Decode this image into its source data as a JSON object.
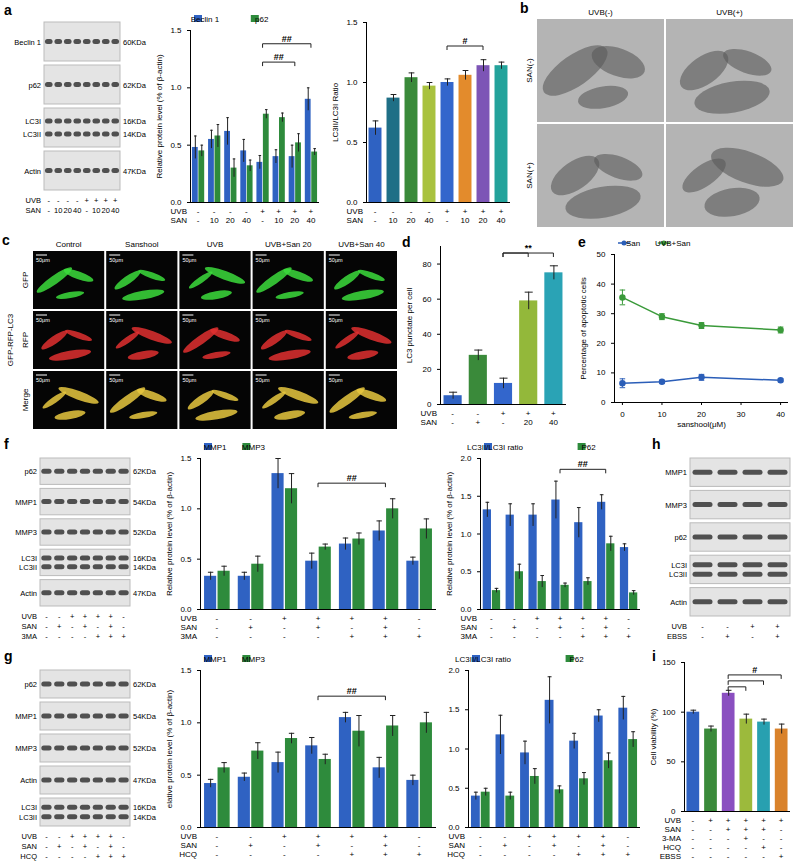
{
  "chart_data": [
    {
      "panel": "a",
      "type": "bar",
      "y_label": "Relative protein level (% of β-actin)",
      "ylim": [
        0,
        1.5
      ],
      "yticks": [
        {
          "value": 0,
          "label": "0.0"
        },
        0.5,
        {
          "value": 1,
          "label": "1.0"
        },
        1.5
      ],
      "x_rows": [
        {
          "label": "UVB",
          "values": [
            "-",
            "-",
            "-",
            "-",
            "+",
            "+",
            "+",
            "+"
          ]
        },
        {
          "label": "SAN",
          "values": [
            "-",
            "10",
            "20",
            "40",
            "-",
            "10",
            "20",
            "40"
          ]
        }
      ],
      "legend": "top",
      "series": [
        {
          "name": "Beclin 1",
          "color": "#2f62c2",
          "values": [
            0.48,
            0.55,
            0.62,
            0.45,
            0.35,
            0.4,
            0.4,
            0.9
          ],
          "error": [
            0.1,
            0.08,
            0.12,
            0.1,
            0.06,
            0.06,
            0.1,
            0.1
          ]
        },
        {
          "name": "p62",
          "color": "#2e8b3c",
          "values": [
            0.45,
            0.58,
            0.3,
            0.32,
            0.77,
            0.74,
            0.52,
            0.44
          ],
          "error": [
            0.05,
            0.1,
            0.08,
            0.05,
            0.04,
            0.04,
            0.08,
            0.03
          ]
        }
      ],
      "annotations": [
        {
          "text": "##",
          "from": 4,
          "to": 7,
          "y": 1.38
        },
        {
          "text": "##",
          "from": 4,
          "to": 6,
          "y": 1.22
        }
      ]
    },
    {
      "panel": "a",
      "type": "bar",
      "y_label": "LC3II/LC3I Ratio",
      "ylim": [
        0,
        1.5
      ],
      "yticks": [
        {
          "value": 0,
          "label": "0.0"
        },
        0.5,
        {
          "value": 1,
          "label": "1.0"
        },
        1.5
      ],
      "x_rows": [
        {
          "label": "UVB",
          "values": [
            "-",
            "-",
            "-",
            "-",
            "+",
            "+",
            "+",
            "+"
          ]
        },
        {
          "label": "SAN",
          "values": [
            "-",
            "10",
            "20",
            "40",
            "-",
            "10",
            "20",
            "40"
          ]
        }
      ],
      "values": [
        0.62,
        0.87,
        1.04,
        0.97,
        1.0,
        1.06,
        1.14,
        1.14
      ],
      "error": [
        0.06,
        0.03,
        0.04,
        0.03,
        0.03,
        0.04,
        0.05,
        0.03
      ],
      "colors": [
        "#2f62c2",
        "#1f6f86",
        "#3a8a3a",
        "#a9c23f",
        "#3366cc",
        "#e38b2c",
        "#7d55b6",
        "#23a39b"
      ],
      "annotations": [
        {
          "text": "#",
          "from": 4,
          "to": 6,
          "y": 1.3
        }
      ]
    },
    {
      "panel": "d",
      "type": "bar",
      "y_label": "LC3 punctate per cell",
      "ylim": [
        0,
        90
      ],
      "yticks": [
        0,
        20,
        40,
        60,
        80
      ],
      "x_rows": [
        {
          "label": "UVB",
          "values": [
            "-",
            "-",
            "+",
            "+",
            "+"
          ]
        },
        {
          "label": "SAN",
          "values": [
            "-",
            "+",
            "-",
            "20",
            "40"
          ]
        }
      ],
      "values": [
        5,
        28,
        12,
        59,
        75
      ],
      "error": [
        2,
        3,
        3,
        5,
        4
      ],
      "colors": [
        "#2f62c2",
        "#3a8a3a",
        "#3366cc",
        "#93b83a",
        "#2aa3b5"
      ],
      "annotations": [
        {
          "text": "**",
          "from": 2,
          "to": 4,
          "y": 86
        },
        {
          "from": 2,
          "to": 3,
          "y": 86
        }
      ]
    },
    {
      "panel": "e",
      "type": "line",
      "y_label": "Percentage of apoptotic cells",
      "x_label": "sanshool(μM)",
      "xlim": [
        -2,
        42
      ],
      "xticks": [
        0,
        10,
        20,
        30,
        40
      ],
      "ylim": [
        0,
        50
      ],
      "yticks": [
        0,
        10,
        20,
        30,
        40,
        50
      ],
      "x": [
        0,
        10,
        20,
        40
      ],
      "legend": "top",
      "series": [
        {
          "name": "San",
          "color": "#2b5eb8",
          "marker": "circle",
          "values": [
            6.5,
            7,
            8.5,
            7.5
          ],
          "error": [
            1.5,
            0.5,
            1,
            0.5
          ]
        },
        {
          "name": "UVB+San",
          "color": "#3a9a3a",
          "marker": "circle",
          "values": [
            35.5,
            29,
            26,
            24.5
          ],
          "error": [
            2.5,
            1,
            1,
            1
          ]
        }
      ]
    },
    {
      "panel": "f",
      "type": "bar",
      "y_label": "Relative protein level (% of β-actin)",
      "ylim": [
        0,
        1.5
      ],
      "yticks": [
        {
          "value": 0,
          "label": "0.0"
        },
        0.5,
        {
          "value": 1,
          "label": "1.0"
        },
        1.5
      ],
      "x_rows": [
        {
          "label": "UVB",
          "values": [
            "-",
            "-",
            "+",
            "+",
            "+",
            "+",
            "-"
          ]
        },
        {
          "label": "SAN",
          "values": [
            "-",
            "+",
            "-",
            "+",
            "-",
            "+",
            "-"
          ]
        },
        {
          "label": "3MA",
          "values": [
            "-",
            "-",
            "-",
            "-",
            "+",
            "+",
            "+"
          ]
        }
      ],
      "legend": "top",
      "series": [
        {
          "name": "MMP1",
          "color": "#2f62c2",
          "values": [
            0.33,
            0.33,
            1.35,
            0.48,
            0.65,
            0.78,
            0.48
          ],
          "error": [
            0.04,
            0.04,
            0.15,
            0.08,
            0.06,
            0.1,
            0.04
          ]
        },
        {
          "name": "MMP3",
          "color": "#2e8b3c",
          "values": [
            0.38,
            0.45,
            1.2,
            0.62,
            0.7,
            1.0,
            0.8
          ],
          "error": [
            0.05,
            0.08,
            0.15,
            0.03,
            0.06,
            0.1,
            0.1
          ]
        }
      ],
      "annotations": [
        {
          "text": "##",
          "from": 3,
          "to": 5,
          "y": 1.25
        }
      ]
    },
    {
      "panel": "f",
      "type": "bar",
      "y_label": "Relative protein level (% of β-actin)",
      "ylim": [
        0,
        2
      ],
      "yticks": [
        {
          "value": 0,
          "label": "0.0"
        },
        0.5,
        {
          "value": 1,
          "label": "1.0"
        },
        1.5,
        {
          "value": 2,
          "label": "2.0"
        }
      ],
      "x_rows": [
        {
          "label": "UVB",
          "values": [
            "-",
            "-",
            "+",
            "+",
            "+",
            "+",
            "-"
          ]
        },
        {
          "label": "SAN",
          "values": [
            "-",
            "+",
            "-",
            "+",
            "-",
            "+",
            "-"
          ]
        },
        {
          "label": "3MA",
          "values": [
            "-",
            "-",
            "-",
            "-",
            "+",
            "+",
            "+"
          ]
        }
      ],
      "legend": "top",
      "series": [
        {
          "name": "LC3II/LC3I ratio",
          "color": "#2f62c2",
          "values": [
            1.32,
            1.25,
            1.25,
            1.45,
            1.15,
            1.42,
            0.82
          ],
          "error": [
            0.1,
            0.15,
            0.15,
            0.25,
            0.2,
            0.1,
            0.05
          ]
        },
        {
          "name": "P62",
          "color": "#2e8b3c",
          "values": [
            0.25,
            0.5,
            0.37,
            0.32,
            0.37,
            0.87,
            0.22
          ],
          "error": [
            0.03,
            0.1,
            0.08,
            0.03,
            0.05,
            0.1,
            0.03
          ]
        }
      ],
      "annotations": [
        {
          "text": "##",
          "from": 3,
          "to": 5,
          "y": 1.85
        }
      ]
    },
    {
      "panel": "g",
      "type": "bar",
      "y_label": "elative protein level (% of β-actin)",
      "ylim": [
        0,
        1.5
      ],
      "yticks": [
        {
          "value": 0,
          "label": "0.0"
        },
        0.5,
        {
          "value": 1,
          "label": "1.0"
        },
        1.5
      ],
      "x_rows": [
        {
          "label": "UVB",
          "values": [
            "-",
            "-",
            "+",
            "+",
            "+",
            "+",
            "-"
          ]
        },
        {
          "label": "SAN",
          "values": [
            "-",
            "+",
            "-",
            "+",
            "-",
            "+",
            "-"
          ]
        },
        {
          "label": "HCQ",
          "values": [
            "-",
            "-",
            "-",
            "-",
            "+",
            "+",
            "+"
          ]
        }
      ],
      "legend": "top",
      "series": [
        {
          "name": "MMP1",
          "color": "#2f62c2",
          "values": [
            0.42,
            0.48,
            0.62,
            0.78,
            1.05,
            0.57,
            0.45
          ],
          "error": [
            0.04,
            0.04,
            0.1,
            0.08,
            0.05,
            0.1,
            0.05
          ]
        },
        {
          "name": "MMP3",
          "color": "#2e8b3c",
          "values": [
            0.57,
            0.73,
            0.85,
            0.65,
            0.92,
            0.97,
            1.0
          ],
          "error": [
            0.05,
            0.08,
            0.05,
            0.05,
            0.15,
            0.1,
            0.1
          ]
        }
      ],
      "annotations": [
        {
          "text": "##",
          "from": 3,
          "to": 5,
          "y": 1.25
        }
      ]
    },
    {
      "panel": "g",
      "type": "bar",
      "ylim": [
        0,
        2
      ],
      "yticks": [
        {
          "value": 0,
          "label": "0.0"
        },
        0.5,
        {
          "value": 1,
          "label": "1.0"
        },
        1.5,
        {
          "value": 2,
          "label": "2.0"
        }
      ],
      "x_rows": [
        {
          "label": "UVB",
          "values": [
            "-",
            "-",
            "+",
            "+",
            "+",
            "+",
            "-"
          ]
        },
        {
          "label": "SAN",
          "values": [
            "-",
            "+",
            "-",
            "+",
            "-",
            "+",
            "-"
          ]
        },
        {
          "label": "HCQ",
          "values": [
            "-",
            "-",
            "-",
            "-",
            "+",
            "+",
            "+"
          ]
        }
      ],
      "legend": "top",
      "series": [
        {
          "name": "LC3II/LC3I ratio",
          "color": "#2f62c2",
          "values": [
            0.4,
            1.18,
            0.95,
            1.62,
            1.1,
            1.42,
            1.52
          ],
          "error": [
            0.05,
            0.25,
            0.15,
            0.3,
            0.1,
            0.08,
            0.15
          ]
        },
        {
          "name": "P62",
          "color": "#2e8b3c",
          "values": [
            0.45,
            0.4,
            0.65,
            0.48,
            0.62,
            0.85,
            1.12
          ],
          "error": [
            0.05,
            0.05,
            0.1,
            0.05,
            0.08,
            0.1,
            0.1
          ]
        }
      ]
    },
    {
      "panel": "i",
      "type": "bar",
      "y_label": "Cell viability (%)",
      "ylim": [
        0,
        150
      ],
      "yticks": [
        0,
        50,
        100,
        150
      ],
      "x_rows": [
        {
          "label": "UVB",
          "values": [
            "-",
            "+",
            "+",
            "+",
            "+",
            "+"
          ]
        },
        {
          "label": "SAN",
          "values": [
            "-",
            "-",
            "+",
            "+",
            "+",
            "-"
          ]
        },
        {
          "label": "3-MA",
          "values": [
            "-",
            "-",
            "-",
            "+",
            "-",
            "-"
          ]
        },
        {
          "label": "HCQ",
          "values": [
            "-",
            "-",
            "-",
            "-",
            "+",
            "-"
          ]
        },
        {
          "label": "EBSS",
          "values": [
            "-",
            "-",
            "-",
            "-",
            "-",
            "+"
          ]
        }
      ],
      "values": [
        100,
        83,
        119,
        93,
        90,
        83
      ],
      "error": [
        2,
        3,
        3,
        5,
        3,
        5
      ],
      "colors": [
        "#2f62c2",
        "#3a8a3a",
        "#8a4fc0",
        "#9cba3c",
        "#28a0b0",
        "#d9822b"
      ],
      "annotations": [
        {
          "text": "#",
          "from": 2,
          "to": 5,
          "y": 137
        },
        {
          "from": 2,
          "to": 4,
          "y": 131
        },
        {
          "from": 2,
          "to": 3,
          "y": 125
        }
      ]
    }
  ],
  "blots": [
    {
      "panel": "a",
      "rows": [
        {
          "label": "Beclin 1",
          "kda": "60KDa"
        },
        {
          "label": "p62",
          "kda": "62KDa"
        },
        {
          "label": [
            "LC3I",
            "LC3II"
          ],
          "kda": [
            "16KDa",
            "14KDa"
          ]
        },
        {
          "label": "Actin",
          "kda": "47KDa"
        }
      ],
      "conditions": [
        {
          "label": "UVB",
          "values": [
            "-",
            "-",
            "-",
            "-",
            "+",
            "+",
            "+",
            "+"
          ]
        },
        {
          "label": "SAN",
          "values": [
            "-",
            "10",
            "20",
            "40",
            "-",
            "10",
            "20",
            "40"
          ]
        }
      ]
    },
    {
      "panel": "f",
      "rows": [
        {
          "label": "p62",
          "kda": "62KDa"
        },
        {
          "label": "MMP1",
          "kda": "54KDa"
        },
        {
          "label": "MMP3",
          "kda": "52KDa"
        },
        {
          "label": [
            "LC3I",
            "LC3II"
          ],
          "kda": [
            "16KDa",
            "14KDa"
          ]
        },
        {
          "label": "Actin",
          "kda": "47KDa"
        }
      ],
      "conditions": [
        {
          "label": "UVB",
          "values": [
            "-",
            "-",
            "+",
            "+",
            "+",
            "+",
            "-"
          ]
        },
        {
          "label": "SAN",
          "values": [
            "-",
            "+",
            "-",
            "+",
            "-",
            "+",
            "-"
          ]
        },
        {
          "label": "3MA",
          "values": [
            "-",
            "-",
            "-",
            "-",
            "+",
            "+",
            "+"
          ]
        }
      ]
    },
    {
      "panel": "g",
      "rows": [
        {
          "label": "p62",
          "kda": "62KDa"
        },
        {
          "label": "MMP1",
          "kda": "54KDa"
        },
        {
          "label": "MMP3",
          "kda": "52KDa"
        },
        {
          "label": "Actin",
          "kda": "47KDa"
        },
        {
          "label": [
            "LC3I",
            "LC3II"
          ],
          "kda": [
            "16KDa",
            "14KDa"
          ]
        }
      ],
      "conditions": [
        {
          "label": "UVB",
          "values": [
            "-",
            "-",
            "+",
            "+",
            "+",
            "+",
            "-"
          ]
        },
        {
          "label": "SAN",
          "values": [
            "-",
            "+",
            "-",
            "+",
            "-",
            "+",
            "-"
          ]
        },
        {
          "label": "HCQ",
          "values": [
            "-",
            "-",
            "-",
            "-",
            "+",
            "+",
            "+"
          ]
        }
      ]
    },
    {
      "panel": "h",
      "rows": [
        {
          "label": "MMP1"
        },
        {
          "label": "MMP3"
        },
        {
          "label": "p62"
        },
        {
          "label": [
            "LC3I",
            "LC3II"
          ]
        },
        {
          "label": "Actin"
        }
      ],
      "conditions": [
        {
          "label": "UVB",
          "values": [
            "-",
            "-",
            "+",
            "+"
          ]
        },
        {
          "label": "EBSS",
          "values": [
            "-",
            "+",
            "-",
            "+"
          ]
        }
      ]
    }
  ],
  "micrographs": [
    {
      "panel": "b",
      "columns": [
        "UVB(-)",
        "UVB(+)"
      ],
      "rows": [
        "SAN(-)",
        "SAN(+)"
      ]
    },
    {
      "panel": "c",
      "columns": [
        "Control",
        "Sanshool",
        "UVB",
        "UVB+San 20",
        "UVB+San 40"
      ],
      "rows": [
        "GFP",
        "RFP",
        "Merge"
      ],
      "group_label": "GFP-RFP-LC3",
      "scale_bar": "50μm"
    }
  ]
}
